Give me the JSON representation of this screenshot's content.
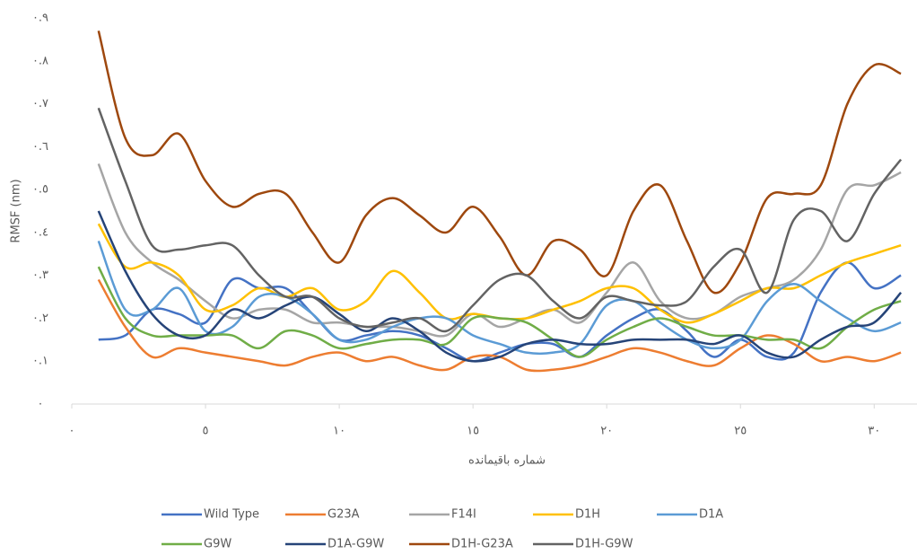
{
  "chart_data": {
    "type": "line",
    "ylabel": "RMSF (nm)",
    "xlabel": "شماره باقیمانده",
    "x": [
      1,
      2,
      3,
      4,
      5,
      6,
      7,
      8,
      9,
      10,
      11,
      12,
      13,
      14,
      15,
      16,
      17,
      18,
      19,
      20,
      21,
      22,
      23,
      24,
      25,
      26,
      27,
      28,
      29,
      30,
      31
    ],
    "xlim": [
      0,
      31.5
    ],
    "ylim": [
      0,
      0.9
    ],
    "xticks": [
      {
        "value": 0,
        "label": "٠"
      },
      {
        "value": 5,
        "label": "٥"
      },
      {
        "value": 10,
        "label": "١٠"
      },
      {
        "value": 15,
        "label": "١٥"
      },
      {
        "value": 20,
        "label": "٢٠"
      },
      {
        "value": 25,
        "label": "٢٥"
      },
      {
        "value": 30,
        "label": "٣٠"
      }
    ],
    "yticks": [
      {
        "value": 0,
        "label": "٠"
      },
      {
        "value": 0.1,
        "label": "٠.١"
      },
      {
        "value": 0.2,
        "label": "٠.٢"
      },
      {
        "value": 0.3,
        "label": "٠.٣"
      },
      {
        "value": 0.4,
        "label": "٠.٤"
      },
      {
        "value": 0.5,
        "label": "٠.٥"
      },
      {
        "value": 0.6,
        "label": "٠.٦"
      },
      {
        "value": 0.7,
        "label": "٠.٧"
      },
      {
        "value": 0.8,
        "label": "٠.٨"
      },
      {
        "value": 0.9,
        "label": "٠.٩"
      }
    ],
    "grid": false,
    "legend": "bottom",
    "series": [
      {
        "name": "Wild Type",
        "color": "#4472c4",
        "values": [
          0.15,
          0.16,
          0.22,
          0.21,
          0.19,
          0.29,
          0.27,
          0.27,
          0.21,
          0.15,
          0.16,
          0.17,
          0.16,
          0.13,
          0.1,
          0.12,
          0.14,
          0.14,
          0.11,
          0.16,
          0.2,
          0.22,
          0.17,
          0.11,
          0.15,
          0.11,
          0.12,
          0.26,
          0.33,
          0.27,
          0.3
        ]
      },
      {
        "name": "G23A",
        "color": "#ed7d31",
        "values": [
          0.29,
          0.18,
          0.11,
          0.13,
          0.12,
          0.11,
          0.1,
          0.09,
          0.11,
          0.12,
          0.1,
          0.11,
          0.09,
          0.08,
          0.11,
          0.11,
          0.08,
          0.08,
          0.09,
          0.11,
          0.13,
          0.12,
          0.1,
          0.09,
          0.13,
          0.16,
          0.14,
          0.1,
          0.11,
          0.1,
          0.12
        ]
      },
      {
        "name": "F14I",
        "color": "#a5a5a5",
        "values": [
          0.56,
          0.4,
          0.33,
          0.29,
          0.24,
          0.2,
          0.22,
          0.22,
          0.19,
          0.19,
          0.18,
          0.18,
          0.17,
          0.16,
          0.21,
          0.18,
          0.2,
          0.22,
          0.19,
          0.26,
          0.33,
          0.24,
          0.2,
          0.21,
          0.25,
          0.27,
          0.29,
          0.36,
          0.5,
          0.51,
          0.54
        ]
      },
      {
        "name": "D1H",
        "color": "#ffc000",
        "values": [
          0.42,
          0.32,
          0.33,
          0.3,
          0.22,
          0.23,
          0.27,
          0.25,
          0.27,
          0.22,
          0.24,
          0.31,
          0.26,
          0.2,
          0.21,
          0.2,
          0.2,
          0.22,
          0.24,
          0.27,
          0.27,
          0.22,
          0.19,
          0.21,
          0.24,
          0.27,
          0.27,
          0.3,
          0.33,
          0.35,
          0.37
        ]
      },
      {
        "name": "D1A",
        "color": "#5b9bd5",
        "values": [
          0.38,
          0.22,
          0.22,
          0.27,
          0.17,
          0.18,
          0.25,
          0.25,
          0.21,
          0.15,
          0.15,
          0.18,
          0.2,
          0.2,
          0.16,
          0.14,
          0.12,
          0.12,
          0.14,
          0.23,
          0.24,
          0.19,
          0.15,
          0.13,
          0.15,
          0.24,
          0.28,
          0.24,
          0.2,
          0.17,
          0.19
        ]
      },
      {
        "name": "G9W",
        "color": "#70ad47",
        "values": [
          0.32,
          0.2,
          0.16,
          0.16,
          0.16,
          0.16,
          0.13,
          0.17,
          0.16,
          0.13,
          0.14,
          0.15,
          0.15,
          0.14,
          0.2,
          0.2,
          0.19,
          0.15,
          0.11,
          0.15,
          0.18,
          0.2,
          0.18,
          0.16,
          0.16,
          0.15,
          0.15,
          0.13,
          0.18,
          0.22,
          0.24
        ]
      },
      {
        "name": "D1A-G9W",
        "color": "#264478",
        "values": [
          0.45,
          0.31,
          0.21,
          0.16,
          0.16,
          0.22,
          0.2,
          0.23,
          0.25,
          0.21,
          0.17,
          0.2,
          0.17,
          0.12,
          0.1,
          0.11,
          0.14,
          0.15,
          0.14,
          0.14,
          0.15,
          0.15,
          0.15,
          0.14,
          0.16,
          0.12,
          0.11,
          0.15,
          0.18,
          0.19,
          0.26
        ]
      },
      {
        "name": "D1H-G23A",
        "color": "#9e480e",
        "values": [
          0.87,
          0.62,
          0.58,
          0.63,
          0.52,
          0.46,
          0.49,
          0.49,
          0.4,
          0.33,
          0.44,
          0.48,
          0.44,
          0.4,
          0.46,
          0.39,
          0.3,
          0.38,
          0.36,
          0.3,
          0.45,
          0.51,
          0.38,
          0.26,
          0.33,
          0.48,
          0.49,
          0.51,
          0.7,
          0.79,
          0.77
        ]
      },
      {
        "name": "D1H-G9W",
        "color": "#636363",
        "values": [
          0.69,
          0.52,
          0.37,
          0.36,
          0.37,
          0.37,
          0.3,
          0.25,
          0.25,
          0.2,
          0.18,
          0.19,
          0.2,
          0.17,
          0.23,
          0.29,
          0.3,
          0.24,
          0.2,
          0.25,
          0.24,
          0.23,
          0.24,
          0.32,
          0.36,
          0.26,
          0.43,
          0.45,
          0.38,
          0.49,
          0.57
        ]
      }
    ]
  }
}
